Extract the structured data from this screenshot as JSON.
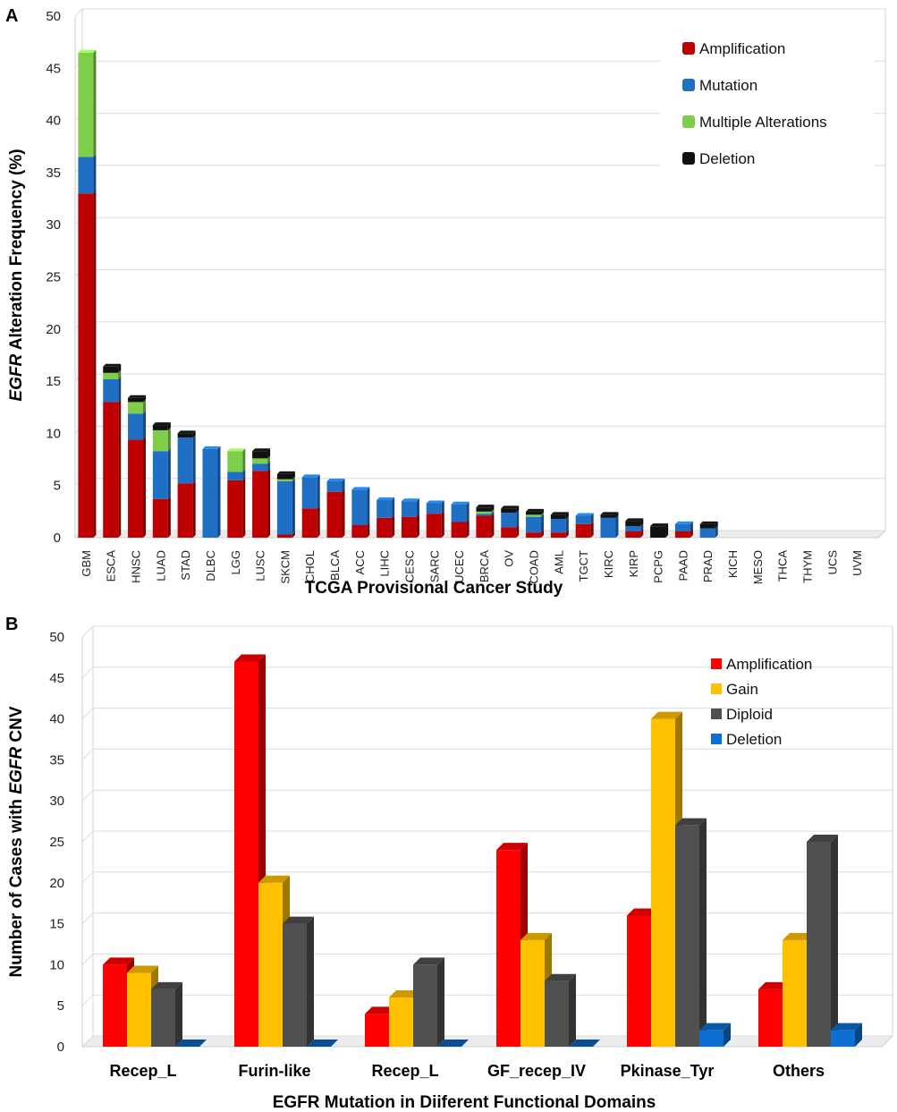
{
  "colors": {
    "amplification_A": "#c00000",
    "mutation": "#1f6fc5",
    "multiple": "#7fce4a",
    "deletion_A": "#111111",
    "amplification_B": "#ff0000",
    "gain": "#ffc000",
    "diploid": "#505050",
    "deletion_B": "#0d6fd1"
  },
  "chart_data": [
    {
      "panel_label": "A",
      "type": "bar",
      "stacked": true,
      "xlabel": "TCGA Provisional Cancer Study",
      "ylabel_italic": "EGFR",
      "ylabel_rest": " Alteration Frequency (%)",
      "ylim": [
        0,
        50
      ],
      "yticks": [
        "0",
        "5",
        "10",
        "15",
        "20",
        "25",
        "30",
        "35",
        "40",
        "45",
        "50"
      ],
      "legend_position": "top-right",
      "categories": [
        "GBM",
        "ESCA",
        "HNSC",
        "LUAD",
        "STAD",
        "DLBC",
        "LGG",
        "LUSC",
        "SKCM",
        "CHOL",
        "BLCA",
        "ACC",
        "LIHC",
        "CESC",
        "SARC",
        "UCEC",
        "BRCA",
        "OV",
        "COAD",
        "AML",
        "TGCT",
        "KIRC",
        "KIRP",
        "PCPG",
        "PAAD",
        "PRAD",
        "KICH",
        "MESO",
        "THCA",
        "THYM",
        "UCS",
        "UVM"
      ],
      "series": [
        {
          "name": "Amplification",
          "color": "#c00000",
          "values": [
            33,
            13,
            9.4,
            3.7,
            5.2,
            0,
            5.5,
            6.4,
            0.3,
            2.8,
            4.4,
            1.2,
            1.9,
            2,
            2.3,
            1.5,
            2.1,
            1,
            0.5,
            0.5,
            1.3,
            0,
            0.6,
            0,
            0.6,
            0,
            0,
            0,
            0,
            0,
            0,
            0
          ]
        },
        {
          "name": "Mutation",
          "color": "#1f6fc5",
          "values": [
            3.5,
            2.2,
            2.5,
            4.6,
            4.4,
            8.5,
            0.8,
            0.7,
            5.1,
            3,
            1,
            3.4,
            1.7,
            1.5,
            1,
            1.7,
            0.2,
            1.4,
            1.5,
            1.3,
            0.8,
            1.9,
            0.5,
            0,
            0.7,
            0.9,
            0,
            0,
            0,
            0,
            0,
            0
          ]
        },
        {
          "name": "Multiple Alterations",
          "color": "#7fce4a",
          "values": [
            10,
            0.6,
            1.1,
            2,
            0,
            0,
            2,
            0.5,
            0.2,
            0,
            0,
            0,
            0,
            0,
            0,
            0,
            0.2,
            0,
            0.2,
            0,
            0,
            0,
            0,
            0,
            0,
            0,
            0,
            0,
            0,
            0,
            0,
            0
          ]
        },
        {
          "name": "Deletion",
          "color": "#111111",
          "values": [
            0,
            0.6,
            0.4,
            0.5,
            0.4,
            0,
            0,
            0.7,
            0.5,
            0,
            0,
            0,
            0,
            0,
            0,
            0,
            0.4,
            0.4,
            0.3,
            0.4,
            0,
            0.3,
            0.5,
            1.1,
            0,
            0.4,
            0,
            0,
            0,
            0,
            0,
            0
          ]
        }
      ]
    },
    {
      "panel_label": "B",
      "type": "bar",
      "stacked": false,
      "xlabel": "EGFR Mutation in Diiferent Functional Domains",
      "ylabel_pre": "Number of Cases with ",
      "ylabel_italic": "EGFR",
      "ylabel_post": " CNV",
      "ylim": [
        0,
        50
      ],
      "yticks": [
        "0",
        "5",
        "10",
        "15",
        "20",
        "25",
        "30",
        "35",
        "40",
        "45",
        "50"
      ],
      "legend_position": "top-right",
      "categories": [
        "Recep_L",
        "Furin-like",
        "Recep_L",
        "GF_recep_IV",
        "Pkinase_Tyr",
        "Others"
      ],
      "series": [
        {
          "name": "Amplification",
          "color": "#ff0000",
          "values": [
            10,
            47,
            4,
            24,
            16,
            7
          ]
        },
        {
          "name": "Gain",
          "color": "#ffc000",
          "values": [
            9,
            20,
            6,
            13,
            40,
            13
          ]
        },
        {
          "name": "Diploid",
          "color": "#505050",
          "values": [
            7,
            15,
            10,
            8,
            27,
            25
          ]
        },
        {
          "name": "Deletion",
          "color": "#0d6fd1",
          "values": [
            0,
            0,
            0,
            0,
            2,
            2
          ]
        }
      ]
    }
  ]
}
